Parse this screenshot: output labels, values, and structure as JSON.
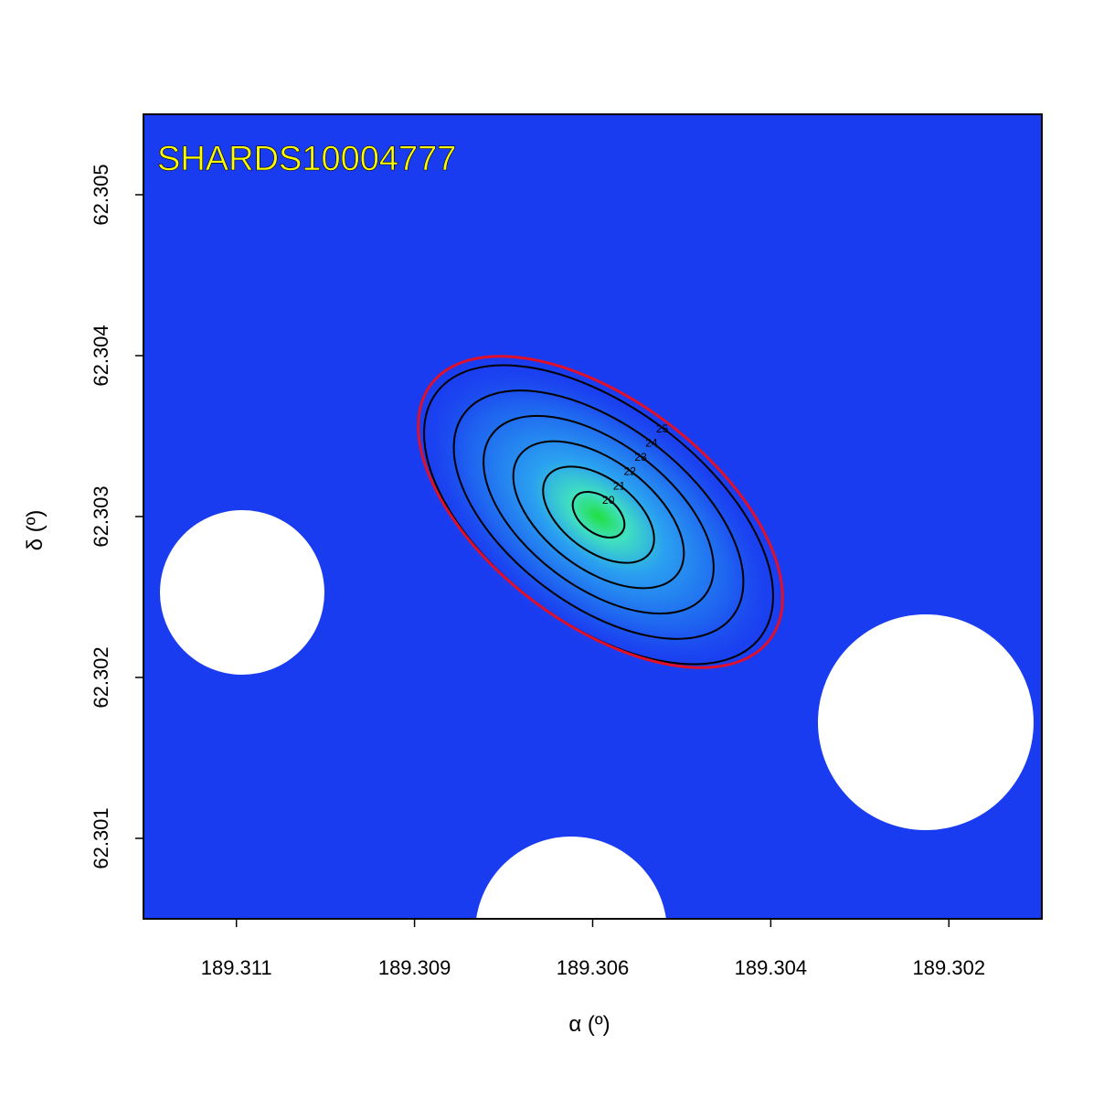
{
  "chart_data": {
    "type": "image",
    "title": "SHARDS10004777",
    "x_label": "α (º)",
    "y_label": "δ (º)",
    "xlim": [
      189.3122,
      189.3006
    ],
    "ylim": [
      62.3005,
      62.3055
    ],
    "xticks": [
      {
        "value": 189.311,
        "label": "189.311"
      },
      {
        "value": 189.3087,
        "label": "189.309"
      },
      {
        "value": 189.3064,
        "label": "189.306"
      },
      {
        "value": 189.3041,
        "label": "189.304"
      },
      {
        "value": 189.3018,
        "label": "189.302"
      }
    ],
    "yticks": [
      62.301,
      62.302,
      62.303,
      62.304,
      62.305
    ],
    "contour_levels": [
      20,
      21,
      22,
      23,
      24,
      25
    ],
    "contour_color": "#000000",
    "aperture_color": "#e0102a",
    "background_color": "#1a3cf0"
  }
}
